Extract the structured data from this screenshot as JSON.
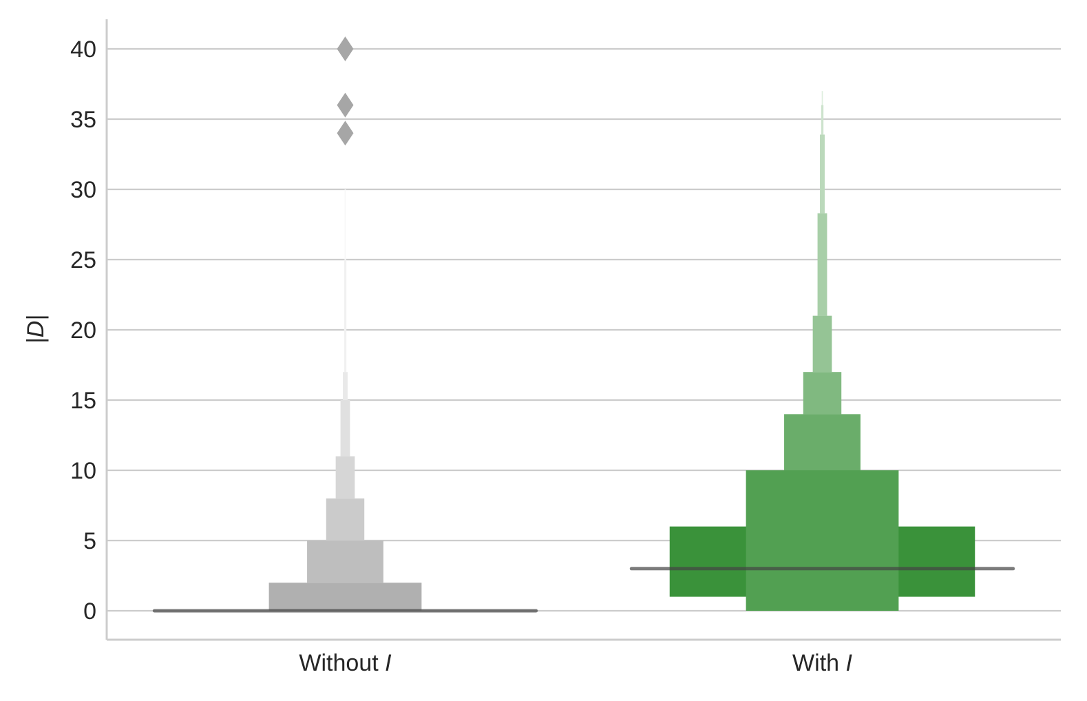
{
  "chart_data": {
    "type": "boxen",
    "title": "",
    "xlabel": "",
    "ylabel": "|D|",
    "ylim": [
      -2,
      42
    ],
    "yticks": [
      0,
      5,
      10,
      15,
      20,
      25,
      30,
      35,
      40
    ],
    "grid": "horizontal",
    "categories": [
      {
        "label": "Without",
        "label_var": "I",
        "color": "#999999",
        "median": 0,
        "boxes": [
          {
            "low": 0,
            "high": 2,
            "width_frac": 0.4,
            "color": "#b0b0b0"
          },
          {
            "low": 2,
            "high": 5,
            "width_frac": 0.2,
            "color": "#bebebe"
          },
          {
            "low": 5,
            "high": 8,
            "width_frac": 0.1,
            "color": "#cbcbcb"
          },
          {
            "low": 8,
            "high": 11,
            "width_frac": 0.05,
            "color": "#d6d6d6"
          },
          {
            "low": 11,
            "high": 15,
            "width_frac": 0.025,
            "color": "#e0e0e0"
          },
          {
            "low": 15,
            "high": 17,
            "width_frac": 0.0125,
            "color": "#e9e9e9"
          },
          {
            "low": 17,
            "high": 25,
            "width_frac": 0.006,
            "color": "#f1f1f1"
          },
          {
            "low": 25,
            "high": 30,
            "width_frac": 0.003,
            "color": "#f8f8f8"
          }
        ],
        "outliers": [
          34,
          36,
          40
        ]
      },
      {
        "label": "With",
        "label_var": "I",
        "color": "#2ca02c",
        "median": 3,
        "boxes": [
          {
            "low": 1,
            "high": 6,
            "width_frac": 0.8,
            "color": "#3a923a"
          },
          {
            "low": 0,
            "high": 10,
            "width_frac": 0.4,
            "color": "#52a052"
          },
          {
            "low": 10,
            "high": 14,
            "width_frac": 0.2,
            "color": "#6aad6a"
          },
          {
            "low": 14,
            "high": 17,
            "width_frac": 0.1,
            "color": "#80b980"
          },
          {
            "low": 17,
            "high": 21,
            "width_frac": 0.05,
            "color": "#95c495"
          },
          {
            "low": 21,
            "high": 28.3,
            "width_frac": 0.025,
            "color": "#a8cfa8"
          },
          {
            "low": 28.3,
            "high": 33.9,
            "width_frac": 0.0125,
            "color": "#bbd9bb"
          },
          {
            "low": 33.9,
            "high": 36,
            "width_frac": 0.006,
            "color": "#cde3cd"
          },
          {
            "low": 36,
            "high": 37,
            "width_frac": 0.003,
            "color": "#deeede"
          }
        ],
        "outliers": []
      }
    ],
    "outlier_color": "#a6a6a6",
    "median_color": "#444444"
  }
}
